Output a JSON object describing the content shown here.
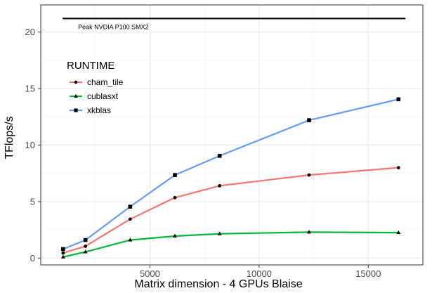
{
  "chart_data": {
    "type": "line",
    "xlabel": "Matrix dimension - 4 GPUs Blaise",
    "ylabel": "TFlops/s",
    "xlim": [
      0,
      17500
    ],
    "ylim": [
      -0.6,
      22.4
    ],
    "x_ticks": [
      5000,
      10000,
      15000
    ],
    "y_ticks": [
      0,
      5,
      10,
      15,
      20
    ],
    "grid": true,
    "legend": {
      "title": "RUNTIME",
      "placement": "top-left"
    },
    "x": [
      1024,
      2048,
      4096,
      6144,
      8192,
      12288,
      16384
    ],
    "series": [
      {
        "name": "cham_tile",
        "color": "#f8766d",
        "marker": "circle",
        "values": [
          0.45,
          1.05,
          3.45,
          5.35,
          6.4,
          7.35,
          8.0
        ]
      },
      {
        "name": "cublasxt",
        "color": "#00ba38",
        "marker": "triangle",
        "values": [
          0.1,
          0.55,
          1.6,
          1.95,
          2.15,
          2.3,
          2.25
        ]
      },
      {
        "name": "xkblas",
        "color": "#619cff",
        "marker": "square",
        "values": [
          0.8,
          1.6,
          4.55,
          7.35,
          9.05,
          12.2,
          14.05
        ]
      }
    ],
    "annotations": [
      {
        "text": "Peak NVDIA P100 SMX2",
        "y": 21.2,
        "x_range": [
          1000,
          16700
        ],
        "color": "#000000"
      }
    ]
  }
}
